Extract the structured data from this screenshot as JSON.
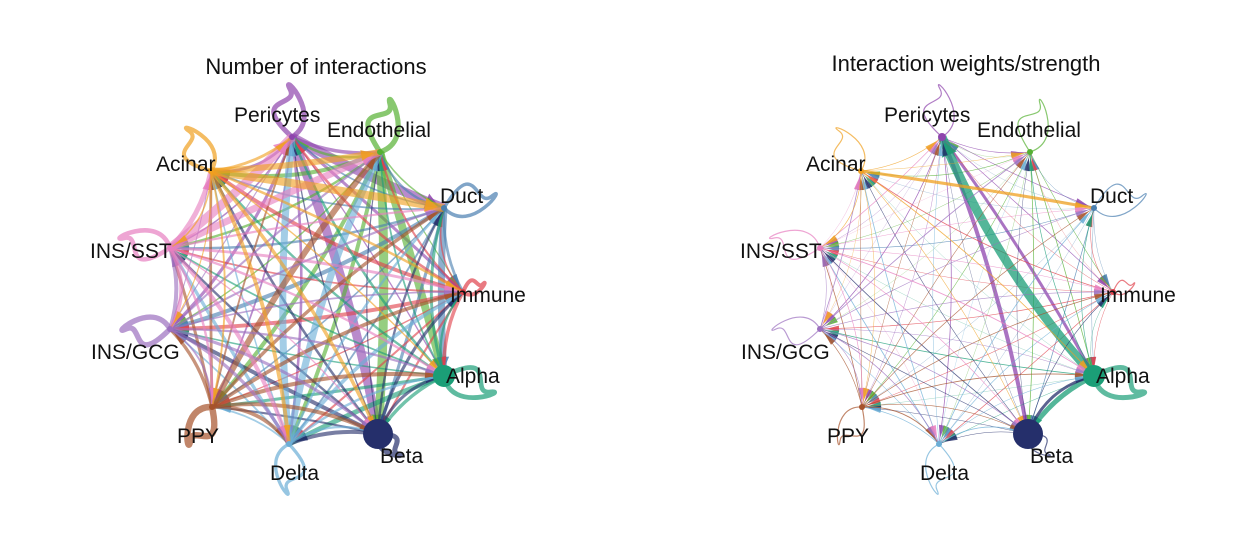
{
  "nodes": [
    {
      "id": "pericytes",
      "label": "Pericytes",
      "color": "#8e44ad"
    },
    {
      "id": "endothelial",
      "label": "Endothelial",
      "color": "#55b032"
    },
    {
      "id": "duct",
      "label": "Duct",
      "color": "#4a7fb0"
    },
    {
      "id": "immune",
      "label": "Immune",
      "color": "#e0414b"
    },
    {
      "id": "alpha",
      "label": "Alpha",
      "color": "#1b9e77"
    },
    {
      "id": "beta",
      "label": "Beta",
      "color": "#252f6b"
    },
    {
      "id": "delta",
      "label": "Delta",
      "color": "#6baed6"
    },
    {
      "id": "ppy",
      "label": "PPY",
      "color": "#a6522b"
    },
    {
      "id": "ins_gcg",
      "label": "INS/GCG",
      "color": "#9b6fbf"
    },
    {
      "id": "ins_sst",
      "label": "INS/SST",
      "color": "#e77fc0"
    },
    {
      "id": "acinar",
      "label": "Acinar",
      "color": "#f0a020"
    }
  ],
  "panels": [
    {
      "id": "count",
      "title": "Number of interactions",
      "node_sizes": {
        "pericytes": 3,
        "endothelial": 3,
        "duct": 3,
        "immune": 3,
        "alpha": 11,
        "beta": 15,
        "delta": 3,
        "ppy": 3,
        "ins_gcg": 3,
        "ins_sst": 3,
        "acinar": 3
      }
    },
    {
      "id": "weight",
      "title": "Interaction weights/strength",
      "node_sizes": {
        "pericytes": 4,
        "endothelial": 3,
        "duct": 3,
        "immune": 3,
        "alpha": 11,
        "beta": 15,
        "delta": 3,
        "ppy": 3,
        "ins_gcg": 3,
        "ins_sst": 3,
        "acinar": 3
      }
    }
  ]
}
